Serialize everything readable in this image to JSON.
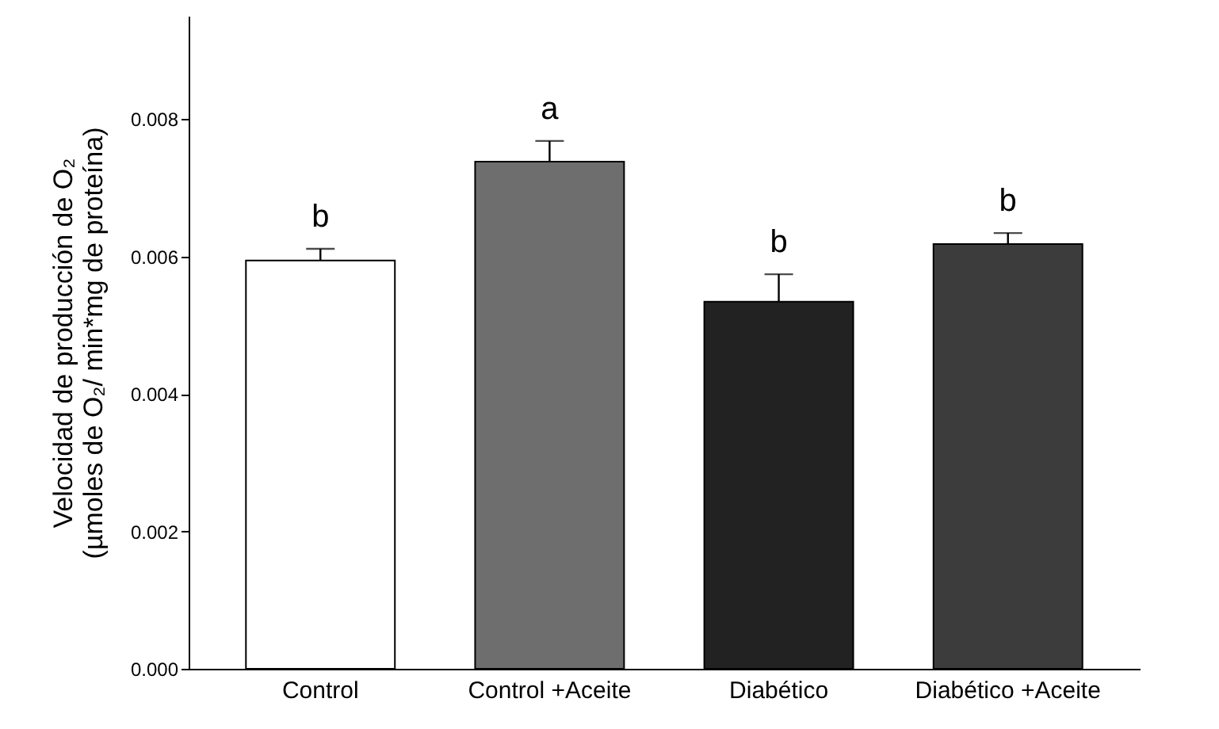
{
  "chart_data": {
    "type": "bar",
    "ylabel": "Velocidad de producción de O₂\n(µmoles de O₂/ min*mg de proteína)",
    "categories": [
      "Control",
      "Control +Aceite",
      "Diabético",
      "Diabético +Aceite"
    ],
    "values": [
      0.00594,
      0.00738,
      0.00534,
      0.00618
    ],
    "colors": [
      "#ffffff",
      "#6e6e6e",
      "#222222",
      "#3c3c3c"
    ],
    "errors": [
      [
        0.00594,
        0.00611
      ],
      [
        0.00738,
        0.00768
      ],
      [
        0.00534,
        0.00574
      ],
      [
        0.00618,
        0.00634
      ]
    ],
    "ylim": [
      0,
      0.0095
    ],
    "yticks": [
      {
        "value": 0,
        "label": "0.000"
      },
      {
        "value": 0.002,
        "label": "0.002"
      },
      {
        "value": 0.004,
        "label": "0.004"
      },
      {
        "value": 0.006,
        "label": "0.006"
      },
      {
        "value": 0.008,
        "label": "0.008"
      }
    ],
    "annotations": [
      {
        "text": "b",
        "x": "Control",
        "y": 0.00611
      },
      {
        "text": "a",
        "x": "Control +Aceite",
        "y": 0.00768
      },
      {
        "text": "b",
        "x": "Diabético",
        "y": 0.00574
      },
      {
        "text": "b",
        "x": "Diabético +Aceite",
        "y": 0.00634
      }
    ],
    "grid": false
  }
}
